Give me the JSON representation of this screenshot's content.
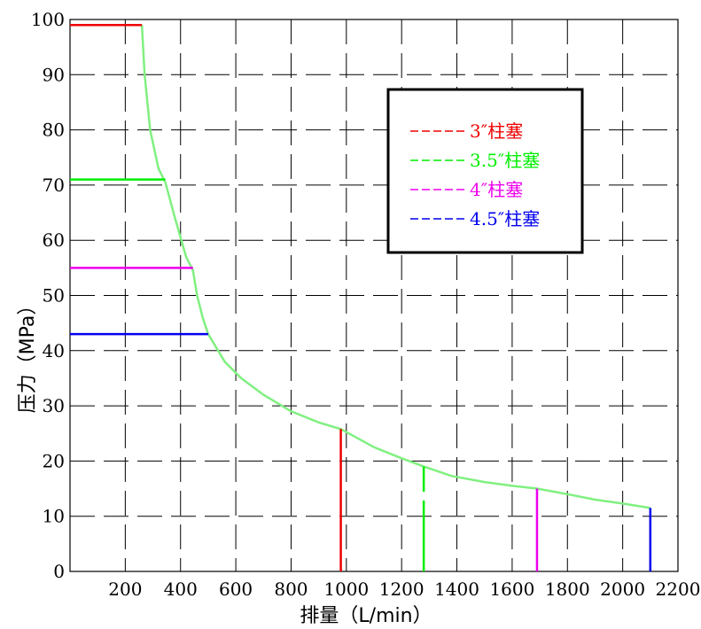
{
  "chart_data": {
    "type": "line",
    "xlabel": "排量（L/min）",
    "ylabel": "压力（MPa）",
    "xlim": [
      0,
      2200
    ],
    "ylim": [
      0,
      100
    ],
    "x_ticks": [
      "200",
      "400",
      "600",
      "800",
      "1000",
      "1200",
      "1400",
      "1600",
      "1800",
      "2000",
      "2200"
    ],
    "y_ticks": [
      "0",
      "10",
      "20",
      "30",
      "40",
      "50",
      "60",
      "70",
      "80",
      "90",
      "100"
    ],
    "grid": true,
    "legend_position": "top-right",
    "curve": {
      "color": "#80f080",
      "points": [
        [
          260,
          99
        ],
        [
          270,
          90
        ],
        [
          290,
          80
        ],
        [
          320,
          73
        ],
        [
          345,
          70.5
        ],
        [
          380,
          64
        ],
        [
          420,
          57
        ],
        [
          445,
          54.5
        ],
        [
          460,
          50
        ],
        [
          480,
          46
        ],
        [
          500,
          43
        ],
        [
          560,
          38
        ],
        [
          620,
          35
        ],
        [
          700,
          32
        ],
        [
          800,
          29
        ],
        [
          900,
          27
        ],
        [
          980,
          25.8
        ],
        [
          1100,
          22.5
        ],
        [
          1200,
          20.5
        ],
        [
          1280,
          19
        ],
        [
          1380,
          17.3
        ],
        [
          1500,
          16.2
        ],
        [
          1600,
          15.5
        ],
        [
          1690,
          15
        ],
        [
          1800,
          14
        ],
        [
          1900,
          13
        ],
        [
          2000,
          12.3
        ],
        [
          2100,
          11.5
        ]
      ]
    },
    "series": [
      {
        "name": "3″柱塞",
        "color": "#ee0000",
        "pressure": 99,
        "flow_end_at_max_pressure": 260,
        "max_flow": 980,
        "pressure_at_max_flow": 25.8
      },
      {
        "name": "3.5″柱塞",
        "color": "#00ee00",
        "pressure": 71,
        "flow_end_at_max_pressure": 345,
        "max_flow": 1280,
        "pressure_at_max_flow": 19
      },
      {
        "name": "4″柱塞",
        "color": "#ee00ee",
        "pressure": 55,
        "flow_end_at_max_pressure": 445,
        "max_flow": 1690,
        "pressure_at_max_flow": 15
      },
      {
        "name": "4.5″柱塞",
        "color": "#0000ee",
        "pressure": 43,
        "flow_end_at_max_pressure": 500,
        "max_flow": 2100,
        "pressure_at_max_flow": 11.5
      }
    ]
  }
}
